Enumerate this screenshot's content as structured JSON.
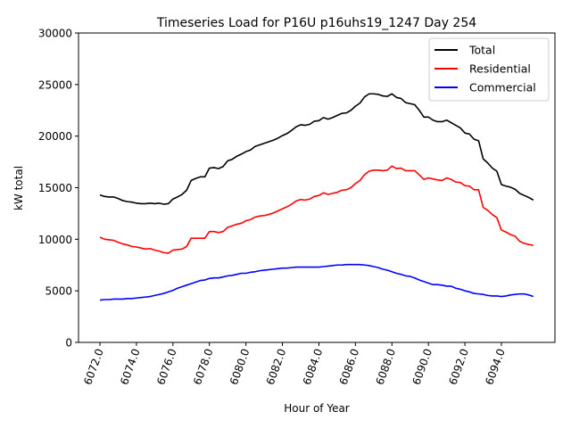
{
  "chart_data": {
    "type": "line",
    "title": "Timeseries Load for P16U p16uhs19_1247  Day 254",
    "xlabel": "Hour of Year",
    "ylabel": "kW total",
    "xlim": [
      6070.8,
      6096.9
    ],
    "ylim": [
      0,
      30000
    ],
    "xticks": [
      6072,
      6074,
      6076,
      6078,
      6080,
      6082,
      6084,
      6086,
      6088,
      6090,
      6092,
      6094
    ],
    "xtick_labels": [
      "6072.0",
      "6074.0",
      "6076.0",
      "6078.0",
      "6080.0",
      "6082.0",
      "6084.0",
      "6086.0",
      "6088.0",
      "6090.0",
      "6092.0",
      "6094.0"
    ],
    "yticks": [
      0,
      5000,
      10000,
      15000,
      20000,
      25000,
      30000
    ],
    "ytick_labels": [
      "0",
      "5000",
      "10000",
      "15000",
      "20000",
      "25000",
      "30000"
    ],
    "grid": false,
    "legend": "top-right",
    "x": [
      6072.0,
      6072.25,
      6072.5,
      6072.75,
      6073.0,
      6073.25,
      6073.5,
      6073.75,
      6074.0,
      6074.25,
      6074.5,
      6074.75,
      6075.0,
      6075.25,
      6075.5,
      6075.75,
      6076.0,
      6076.25,
      6076.5,
      6076.75,
      6077.0,
      6077.25,
      6077.5,
      6077.75,
      6078.0,
      6078.25,
      6078.5,
      6078.75,
      6079.0,
      6079.25,
      6079.5,
      6079.75,
      6080.0,
      6080.25,
      6080.5,
      6080.75,
      6081.0,
      6081.25,
      6081.5,
      6081.75,
      6082.0,
      6082.25,
      6082.5,
      6082.75,
      6083.0,
      6083.25,
      6083.5,
      6083.75,
      6084.0,
      6084.25,
      6084.5,
      6084.75,
      6085.0,
      6085.25,
      6085.5,
      6085.75,
      6086.0,
      6086.25,
      6086.5,
      6086.75,
      6087.0,
      6087.25,
      6087.5,
      6087.75,
      6088.0,
      6088.25,
      6088.5,
      6088.75,
      6089.0,
      6089.25,
      6089.5,
      6089.75,
      6090.0,
      6090.25,
      6090.5,
      6090.75,
      6091.0,
      6091.25,
      6091.5,
      6091.75,
      6092.0,
      6092.25,
      6092.5,
      6092.75,
      6093.0,
      6093.25,
      6093.5,
      6093.75,
      6094.0,
      6094.25,
      6094.5,
      6094.75,
      6095.0,
      6095.25,
      6095.5,
      6095.75
    ],
    "series": [
      {
        "name": "Total",
        "color": "#000000",
        "values": [
          14300,
          14150,
          14100,
          14100,
          13950,
          13750,
          13650,
          13600,
          13500,
          13450,
          13450,
          13500,
          13450,
          13500,
          13400,
          13450,
          13900,
          14100,
          14350,
          14750,
          15700,
          15900,
          16050,
          16050,
          16900,
          16950,
          16850,
          17050,
          17600,
          17750,
          18050,
          18250,
          18500,
          18650,
          19000,
          19150,
          19300,
          19450,
          19600,
          19800,
          20050,
          20250,
          20550,
          20900,
          21100,
          21050,
          21150,
          21450,
          21500,
          21800,
          21650,
          21800,
          22000,
          22200,
          22250,
          22500,
          22900,
          23200,
          23800,
          24100,
          24100,
          24050,
          23900,
          23850,
          24100,
          23750,
          23650,
          23250,
          23150,
          23050,
          22500,
          21850,
          21850,
          21550,
          21400,
          21400,
          21550,
          21300,
          21050,
          20800,
          20300,
          20200,
          19700,
          19550,
          17800,
          17400,
          16900,
          16600,
          15300,
          15150,
          15050,
          14850,
          14450,
          14250,
          14050,
          13800
        ]
      },
      {
        "name": "Residential",
        "color": "#ff0000",
        "values": [
          10200,
          10000,
          9950,
          9900,
          9700,
          9550,
          9450,
          9300,
          9250,
          9150,
          9050,
          9100,
          8950,
          8850,
          8700,
          8650,
          8950,
          9000,
          9050,
          9300,
          10100,
          10100,
          10100,
          10100,
          10750,
          10750,
          10650,
          10750,
          11150,
          11300,
          11450,
          11550,
          11800,
          11900,
          12150,
          12250,
          12300,
          12400,
          12550,
          12750,
          12950,
          13150,
          13400,
          13700,
          13850,
          13800,
          13900,
          14150,
          14250,
          14500,
          14350,
          14450,
          14550,
          14750,
          14800,
          15000,
          15400,
          15700,
          16250,
          16600,
          16700,
          16700,
          16650,
          16700,
          17100,
          16850,
          16900,
          16650,
          16650,
          16650,
          16250,
          15800,
          15950,
          15850,
          15750,
          15700,
          15950,
          15800,
          15550,
          15500,
          15200,
          15150,
          14800,
          14800,
          13100,
          12800,
          12400,
          12100,
          10900,
          10700,
          10450,
          10300,
          9800,
          9600,
          9500,
          9400
        ]
      },
      {
        "name": "Commercial",
        "color": "#0000ff",
        "values": [
          4100,
          4150,
          4150,
          4200,
          4200,
          4200,
          4250,
          4250,
          4300,
          4350,
          4400,
          4450,
          4550,
          4650,
          4750,
          4900,
          5050,
          5250,
          5400,
          5550,
          5700,
          5850,
          6000,
          6050,
          6200,
          6250,
          6250,
          6350,
          6450,
          6500,
          6600,
          6700,
          6700,
          6800,
          6850,
          6950,
          7000,
          7050,
          7100,
          7150,
          7200,
          7200,
          7250,
          7300,
          7300,
          7300,
          7300,
          7300,
          7300,
          7350,
          7400,
          7450,
          7500,
          7500,
          7550,
          7550,
          7550,
          7550,
          7500,
          7450,
          7350,
          7250,
          7100,
          7000,
          6850,
          6700,
          6600,
          6450,
          6400,
          6250,
          6050,
          5900,
          5750,
          5600,
          5600,
          5550,
          5450,
          5450,
          5250,
          5150,
          5000,
          4900,
          4750,
          4700,
          4650,
          4550,
          4500,
          4500,
          4450,
          4500,
          4600,
          4650,
          4700,
          4700,
          4600,
          4450
        ]
      }
    ]
  }
}
